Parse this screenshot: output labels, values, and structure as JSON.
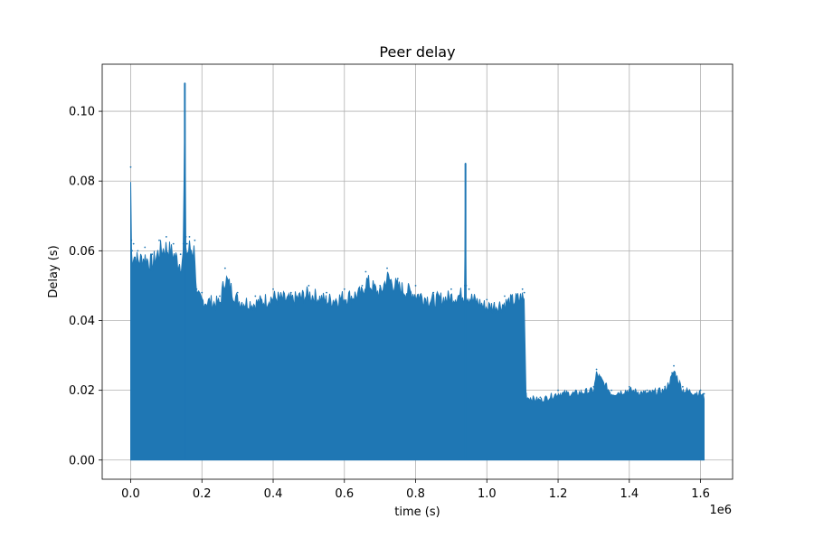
{
  "chart_data": {
    "type": "area",
    "title": "Peer delay",
    "xlabel": "time (s)",
    "ylabel": "Delay (s)",
    "x_offset_label": "1e6",
    "xlim": [
      -0.08,
      1.69
    ],
    "ylim": [
      -0.0055,
      0.1135
    ],
    "x_ticks": [
      0.0,
      0.2,
      0.4,
      0.6,
      0.8,
      1.0,
      1.2,
      1.4,
      1.6
    ],
    "x_tick_labels": [
      "0.0",
      "0.2",
      "0.4",
      "0.6",
      "0.8",
      "1.0",
      "1.2",
      "1.4",
      "1.6"
    ],
    "y_ticks": [
      0.0,
      0.02,
      0.04,
      0.06,
      0.08,
      0.1
    ],
    "y_tick_labels": [
      "0.00",
      "0.02",
      "0.04",
      "0.06",
      "0.08",
      "0.10"
    ],
    "grid": true,
    "series_color": "#1f77b4",
    "series": [
      {
        "x": [
          0.0,
          0.002,
          0.004,
          0.008,
          0.02,
          0.04,
          0.06,
          0.08,
          0.1,
          0.12,
          0.14,
          0.148,
          0.152,
          0.155,
          0.158,
          0.165,
          0.18,
          0.185,
          0.2,
          0.25,
          0.265,
          0.3,
          0.35,
          0.4,
          0.45,
          0.5,
          0.55,
          0.6,
          0.65,
          0.66,
          0.7,
          0.72,
          0.75,
          0.8,
          0.85,
          0.9,
          0.938,
          0.94,
          0.942,
          0.95,
          1.0,
          1.05,
          1.1,
          1.105,
          1.11,
          1.15,
          1.2,
          1.25,
          1.3,
          1.308,
          1.35,
          1.4,
          1.45,
          1.5,
          1.52,
          1.525,
          1.55,
          1.6,
          1.61
        ],
        "y": [
          0.084,
          0.063,
          0.06,
          0.062,
          0.06,
          0.061,
          0.059,
          0.063,
          0.064,
          0.062,
          0.059,
          0.062,
          0.108,
          0.064,
          0.062,
          0.064,
          0.063,
          0.049,
          0.048,
          0.047,
          0.055,
          0.048,
          0.047,
          0.049,
          0.048,
          0.05,
          0.048,
          0.049,
          0.05,
          0.054,
          0.05,
          0.055,
          0.052,
          0.05,
          0.048,
          0.049,
          0.05,
          0.085,
          0.05,
          0.049,
          0.046,
          0.047,
          0.049,
          0.048,
          0.019,
          0.018,
          0.02,
          0.02,
          0.021,
          0.026,
          0.02,
          0.021,
          0.02,
          0.021,
          0.025,
          0.027,
          0.021,
          0.02,
          0.019
        ]
      }
    ]
  }
}
